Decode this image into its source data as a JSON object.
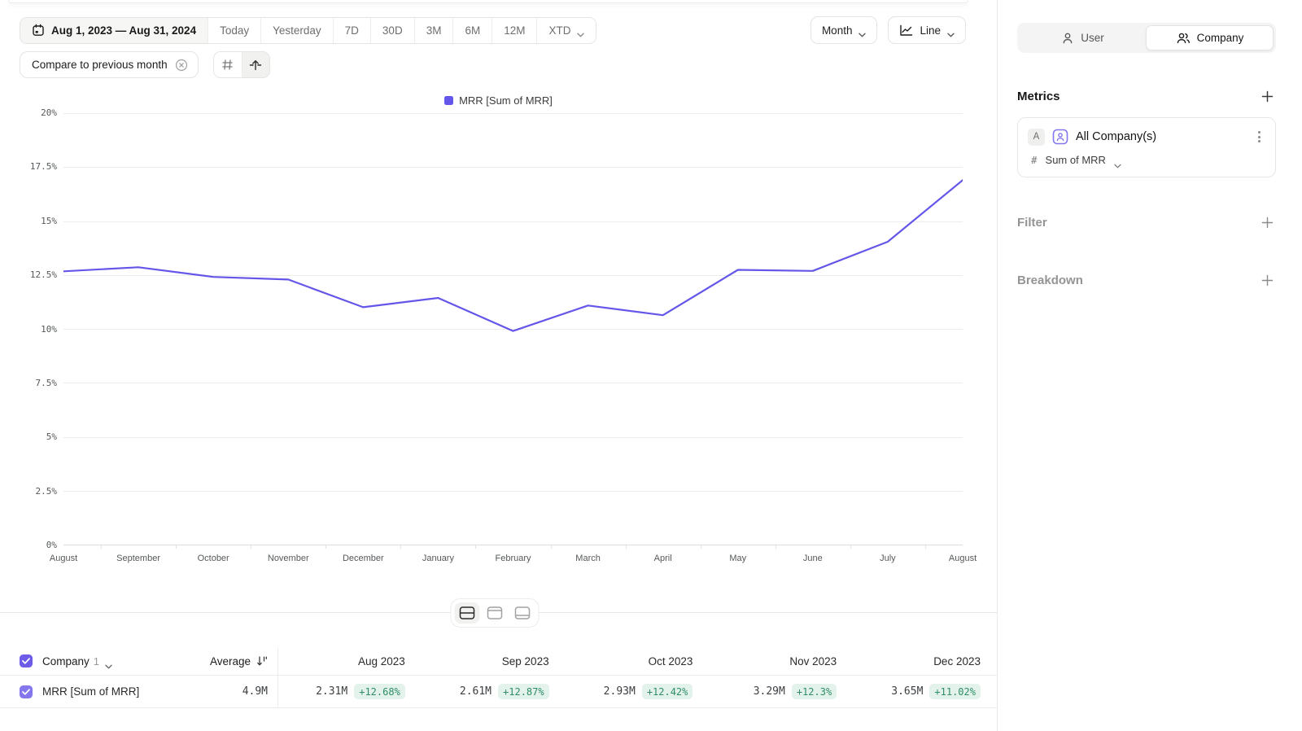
{
  "toolbar": {
    "date_range": "Aug 1, 2023 — Aug 31, 2024",
    "presets": [
      "Today",
      "Yesterday",
      "7D",
      "30D",
      "3M",
      "6M",
      "12M"
    ],
    "xtd_label": "XTD",
    "granularity_label": "Month",
    "chart_type_label": "Line",
    "compare_chip_label": "Compare to previous month"
  },
  "sidebar": {
    "tabs": {
      "user": "User",
      "company": "Company"
    },
    "metrics_title": "Metrics",
    "metric": {
      "badge": "A",
      "name": "All Company(s)",
      "aggregation": "Sum of MRR"
    },
    "filter_label": "Filter",
    "breakdown_label": "Breakdown"
  },
  "chart_data": {
    "type": "line",
    "legend": "MRR [Sum of MRR]",
    "x": [
      "August",
      "September",
      "October",
      "November",
      "December",
      "January",
      "February",
      "March",
      "April",
      "May",
      "June",
      "July",
      "August"
    ],
    "values": [
      12.68,
      12.87,
      12.42,
      12.3,
      11.02,
      11.45,
      9.92,
      11.1,
      10.65,
      12.75,
      12.7,
      14.05,
      16.9
    ],
    "ylabel": "",
    "xlabel": "",
    "ylim": [
      0,
      20
    ],
    "ytick_labels_desc": [
      "20%",
      "17.5%",
      "15%",
      "12.5%",
      "10%",
      "7.5%",
      "5%",
      "2.5%",
      "0%"
    ],
    "grid": "horizontal",
    "legend_position": "top-center",
    "line_color": "#6456e8"
  },
  "table": {
    "group_label": "Company",
    "group_count": "1",
    "average_label": "Average",
    "columns": [
      "Aug 2023",
      "Sep 2023",
      "Oct 2023",
      "Nov 2023",
      "Dec 2023"
    ],
    "row": {
      "name": "MRR [Sum of MRR]",
      "average": "4.9M",
      "cells": [
        {
          "value": "2.31M",
          "delta": "+12.68%"
        },
        {
          "value": "2.61M",
          "delta": "+12.87%"
        },
        {
          "value": "2.93M",
          "delta": "+12.42%"
        },
        {
          "value": "3.29M",
          "delta": "+12.3%"
        },
        {
          "value": "3.65M",
          "delta": "+11.02%"
        }
      ]
    }
  },
  "colors": {
    "accent_purple": "#6456e8",
    "checkbox_purple": "#6d5ce8",
    "badge_green_bg": "#e3f2ea",
    "badge_green_text": "#2e8e68"
  }
}
